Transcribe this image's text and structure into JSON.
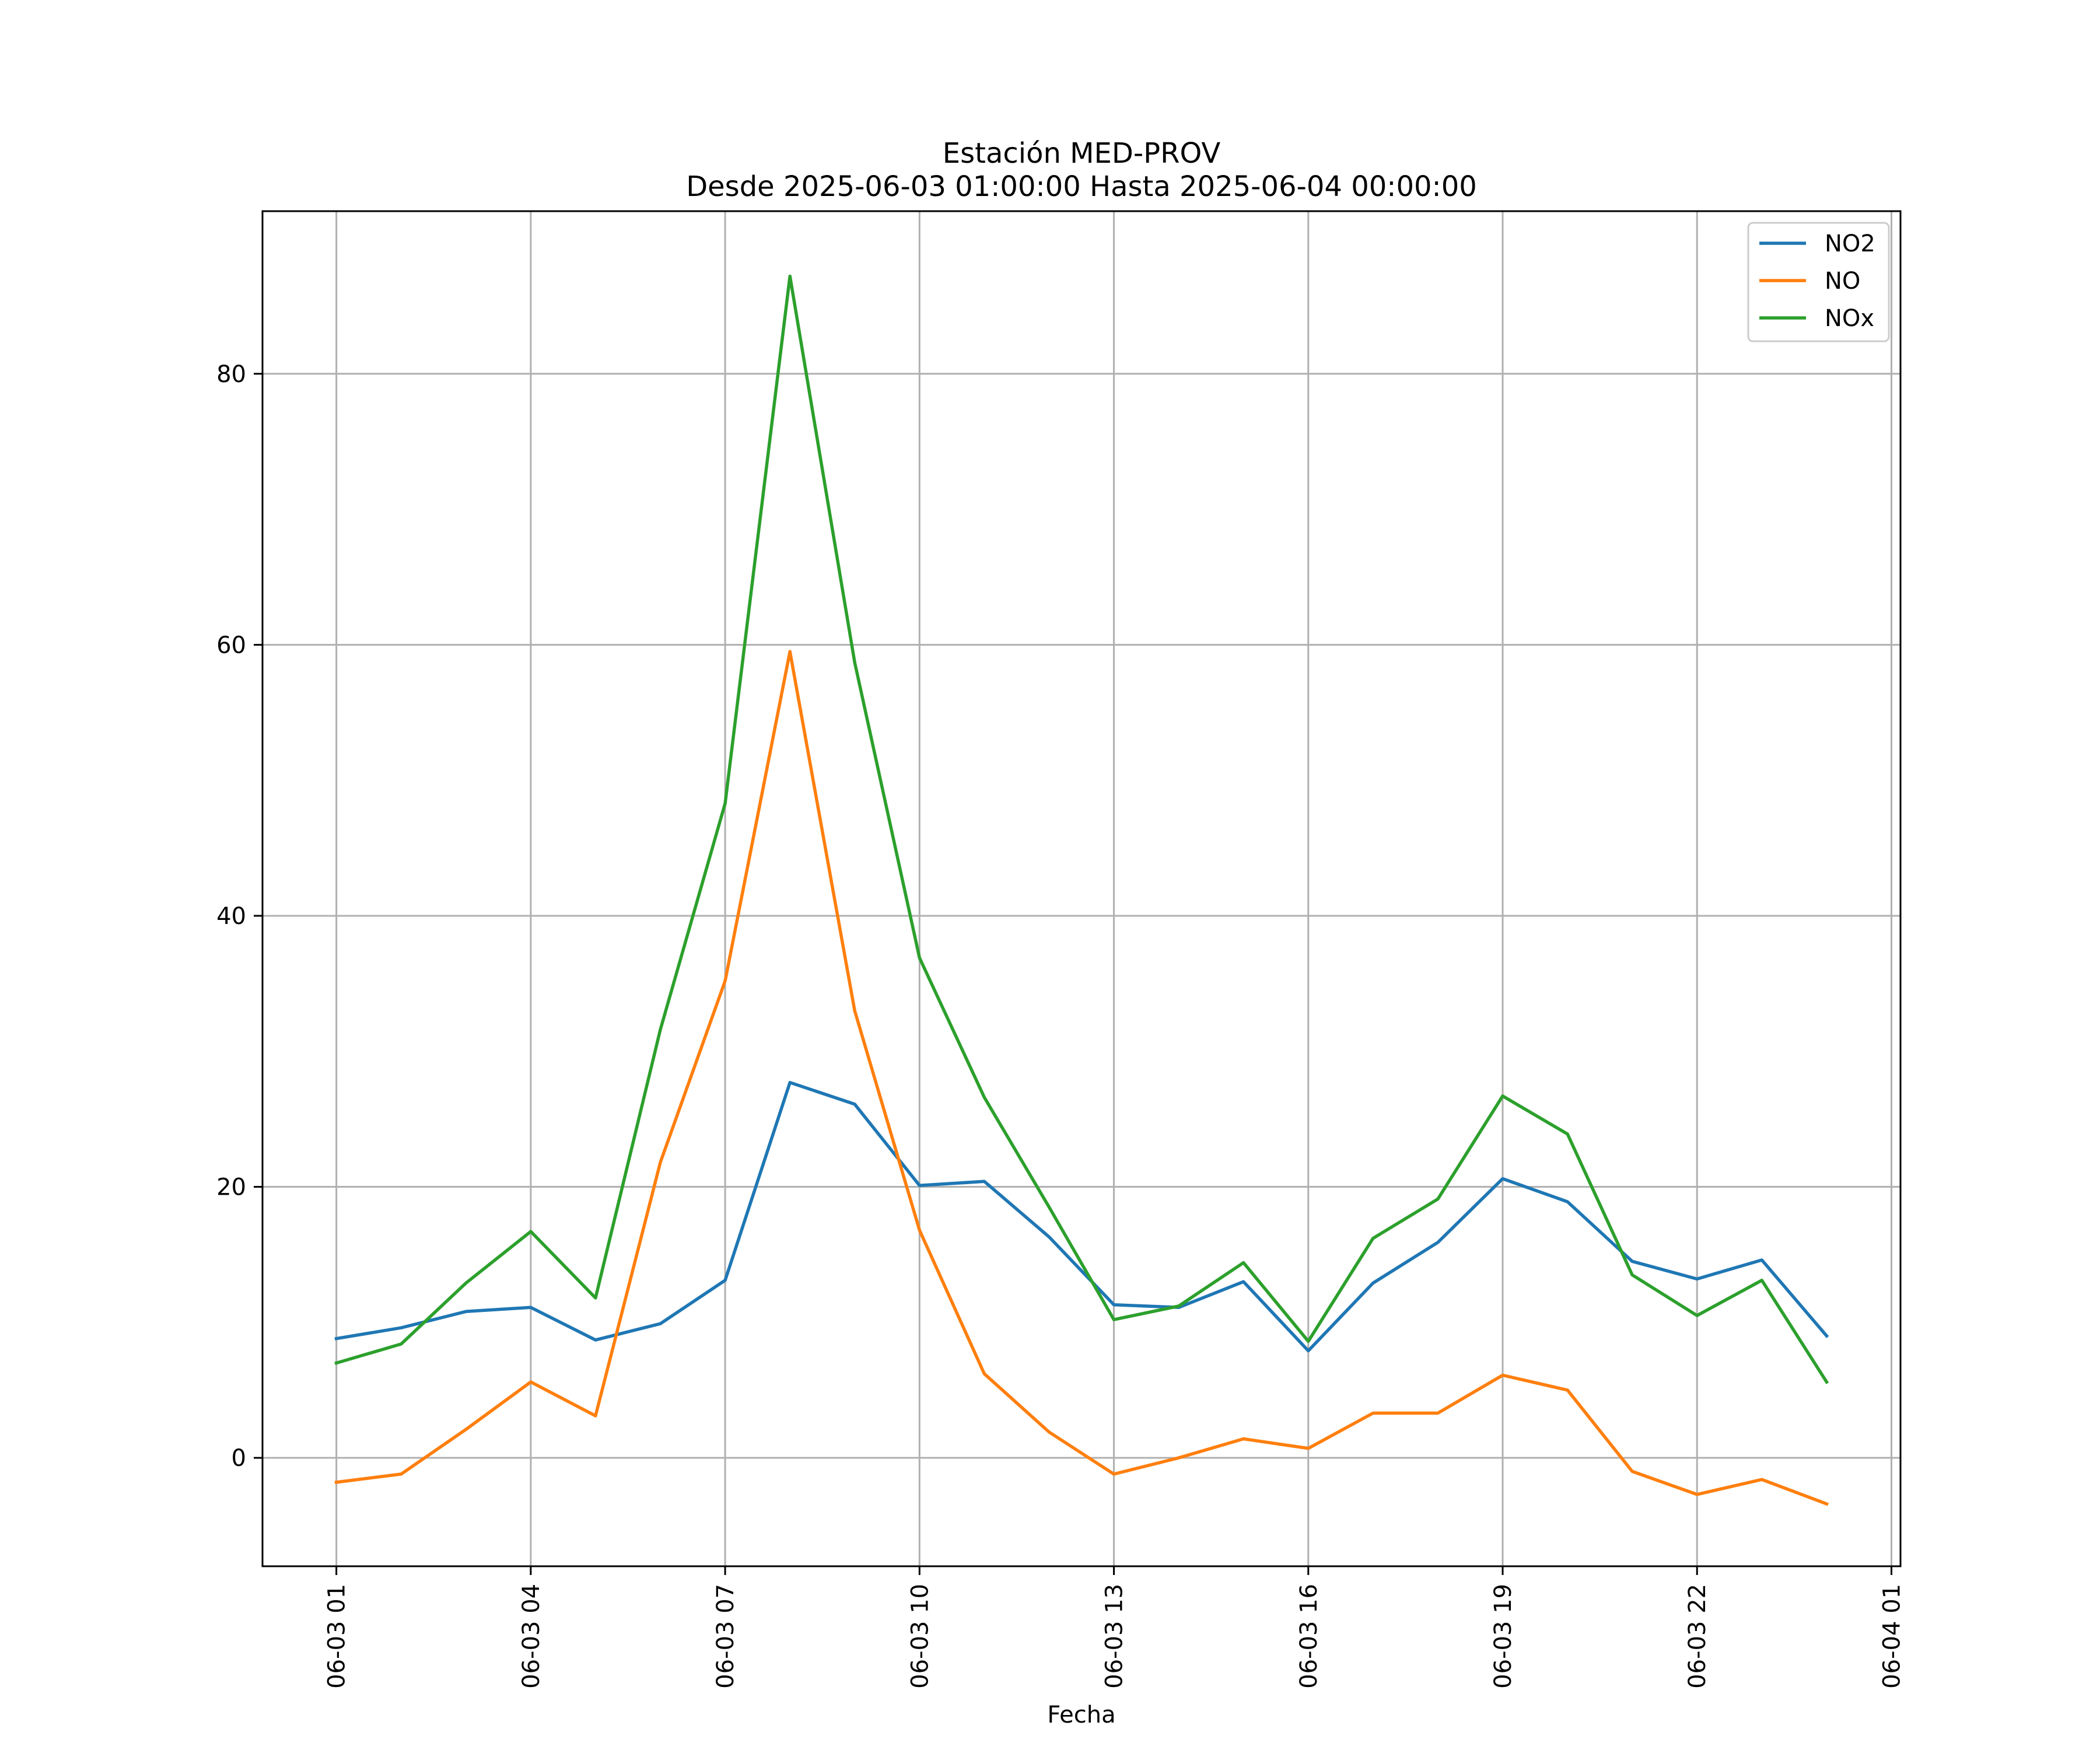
{
  "chart_data": {
    "type": "line",
    "title": "Estación MED-PROV",
    "subtitle": "Desde 2025-06-03 01:00:00 Hasta 2025-06-04 00:00:00",
    "xlabel": "Fecha",
    "ylabel": "",
    "x_range_hours": [
      -1.14,
      24.14
    ],
    "x_tick_hours": [
      0,
      3,
      6,
      9,
      12,
      15,
      18,
      21,
      24
    ],
    "x_tick_labels": [
      "06-03 01",
      "06-03 04",
      "06-03 07",
      "06-03 10",
      "06-03 13",
      "06-03 16",
      "06-03 19",
      "06-03 22",
      "06-04 01"
    ],
    "ylim": [
      -8,
      92
    ],
    "y_ticks": [
      0,
      20,
      40,
      60,
      80
    ],
    "y_tick_labels": [
      "0",
      "20",
      "40",
      "60",
      "80"
    ],
    "grid": true,
    "legend_position": "top-right",
    "x": [
      "06-03 01:00",
      "06-03 02:00",
      "06-03 03:00",
      "06-03 04:00",
      "06-03 05:00",
      "06-03 06:00",
      "06-03 07:00",
      "06-03 08:00",
      "06-03 09:00",
      "06-03 10:00",
      "06-03 11:00",
      "06-03 12:00",
      "06-03 13:00",
      "06-03 14:00",
      "06-03 15:00",
      "06-03 16:00",
      "06-03 17:00",
      "06-03 18:00",
      "06-03 19:00",
      "06-03 20:00",
      "06-03 21:00",
      "06-03 22:00",
      "06-03 23:00",
      "06-04 00:00"
    ],
    "series": [
      {
        "name": "NO2",
        "color": "#1f77b4",
        "values": [
          8.8,
          9.6,
          10.8,
          11.1,
          8.7,
          9.9,
          13.1,
          27.7,
          26.1,
          20.1,
          20.4,
          16.3,
          11.3,
          11.1,
          13.0,
          7.9,
          12.9,
          15.9,
          20.6,
          18.9,
          14.5,
          13.2,
          14.6,
          9.0
        ]
      },
      {
        "name": "NO",
        "color": "#ff7f0e",
        "values": [
          -1.8,
          -1.2,
          2.1,
          5.6,
          3.1,
          21.8,
          35.2,
          59.5,
          33.0,
          16.8,
          6.2,
          1.9,
          -1.2,
          0.0,
          1.4,
          0.7,
          3.3,
          3.3,
          6.1,
          5.0,
          -1.0,
          -2.7,
          -1.6,
          -3.4
        ]
      },
      {
        "name": "NOx",
        "color": "#2ca02c",
        "values": [
          7.0,
          8.4,
          12.9,
          16.7,
          11.8,
          31.6,
          48.3,
          87.2,
          58.7,
          36.9,
          26.6,
          18.5,
          10.2,
          11.2,
          14.4,
          8.6,
          16.2,
          19.1,
          26.7,
          23.9,
          13.5,
          10.5,
          13.1,
          5.6
        ]
      }
    ]
  }
}
